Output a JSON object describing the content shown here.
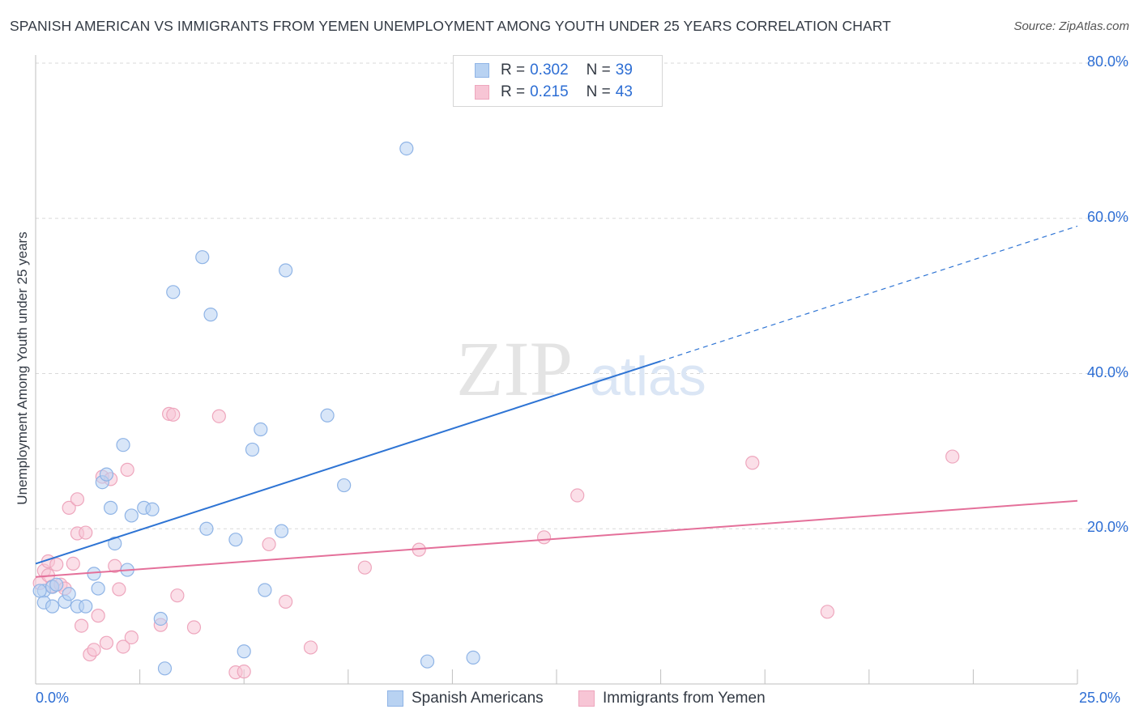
{
  "header": {
    "title": "SPANISH AMERICAN VS IMMIGRANTS FROM YEMEN UNEMPLOYMENT AMONG YOUTH UNDER 25 YEARS CORRELATION CHART",
    "source": "Source: ZipAtlas.com"
  },
  "watermark": {
    "zip": "ZIP",
    "atlas": "atlas"
  },
  "legend": {
    "rows": [
      {
        "r_label": "R =",
        "r_value": "0.302",
        "n_label": "N =",
        "n_value": "39"
      },
      {
        "r_label": "R =",
        "r_value": "0.215",
        "n_label": "N =",
        "n_value": "43"
      }
    ]
  },
  "colors": {
    "blue_fill": "#b8d2f2",
    "blue_stroke": "#8fb4e6",
    "blue_line": "#2e74d4",
    "pink_fill": "#f7c5d5",
    "pink_stroke": "#eea6bd",
    "pink_line": "#e4709a",
    "tick_text": "#2d6ed4",
    "grid": "#d9d9d9"
  },
  "chart_data": {
    "type": "scatter",
    "title": "SPANISH AMERICAN VS IMMIGRANTS FROM YEMEN UNEMPLOYMENT AMONG YOUTH UNDER 25 YEARS CORRELATION CHART",
    "xlabel": "",
    "ylabel": "Unemployment Among Youth under 25 years",
    "xlim": [
      0,
      25
    ],
    "ylim": [
      0,
      80
    ],
    "x_tick_labels": [
      "0.0%",
      "25.0%"
    ],
    "y_ticks": [
      20,
      40,
      60,
      80
    ],
    "y_tick_labels": [
      "20.0%",
      "40.0%",
      "60.0%",
      "80.0%"
    ],
    "grid": true,
    "legend_position": "top-center",
    "series": [
      {
        "name": "Spanish Americans",
        "r": 0.302,
        "n": 39,
        "points": [
          [
            0.2,
            12.0
          ],
          [
            0.2,
            10.5
          ],
          [
            0.4,
            12.5
          ],
          [
            0.4,
            10.0
          ],
          [
            0.5,
            12.8
          ],
          [
            0.7,
            10.6
          ],
          [
            0.8,
            11.6
          ],
          [
            1.0,
            10.0
          ],
          [
            1.2,
            10.0
          ],
          [
            1.4,
            14.2
          ],
          [
            1.5,
            12.3
          ],
          [
            1.6,
            26.0
          ],
          [
            1.7,
            27.0
          ],
          [
            1.8,
            22.7
          ],
          [
            1.9,
            18.1
          ],
          [
            2.1,
            30.8
          ],
          [
            2.2,
            14.7
          ],
          [
            2.3,
            21.7
          ],
          [
            2.6,
            22.7
          ],
          [
            2.8,
            22.5
          ],
          [
            3.0,
            8.4
          ],
          [
            3.1,
            2.0
          ],
          [
            3.3,
            50.5
          ],
          [
            4.0,
            55.0
          ],
          [
            4.1,
            20.0
          ],
          [
            4.2,
            47.6
          ],
          [
            4.8,
            18.6
          ],
          [
            5.0,
            4.2
          ],
          [
            5.2,
            30.2
          ],
          [
            5.4,
            32.8
          ],
          [
            5.5,
            12.1
          ],
          [
            5.9,
            19.7
          ],
          [
            6.0,
            53.3
          ],
          [
            7.0,
            34.6
          ],
          [
            7.4,
            25.6
          ],
          [
            8.9,
            69.0
          ],
          [
            9.4,
            2.9
          ],
          [
            10.5,
            3.4
          ],
          [
            0.1,
            12.0
          ]
        ],
        "trend": {
          "x0": 0,
          "y0": 15.5,
          "x1": 25,
          "y1": 59.0,
          "solid_until_x": 15.0
        }
      },
      {
        "name": "Immigrants from Yemen",
        "r": 0.215,
        "n": 43,
        "points": [
          [
            0.1,
            13.0
          ],
          [
            0.2,
            14.6
          ],
          [
            0.3,
            15.8
          ],
          [
            0.4,
            12.6
          ],
          [
            0.5,
            15.4
          ],
          [
            0.6,
            12.8
          ],
          [
            0.7,
            12.3
          ],
          [
            0.8,
            22.7
          ],
          [
            0.9,
            15.5
          ],
          [
            1.0,
            19.4
          ],
          [
            1.0,
            23.8
          ],
          [
            1.1,
            7.5
          ],
          [
            1.2,
            19.5
          ],
          [
            1.3,
            3.8
          ],
          [
            1.4,
            4.4
          ],
          [
            1.5,
            8.8
          ],
          [
            1.6,
            26.7
          ],
          [
            1.7,
            5.3
          ],
          [
            1.8,
            26.4
          ],
          [
            1.9,
            15.2
          ],
          [
            2.0,
            12.2
          ],
          [
            2.1,
            4.8
          ],
          [
            2.2,
            27.6
          ],
          [
            2.3,
            6.0
          ],
          [
            3.0,
            7.6
          ],
          [
            3.2,
            34.8
          ],
          [
            3.3,
            34.7
          ],
          [
            3.4,
            11.4
          ],
          [
            3.8,
            7.3
          ],
          [
            4.4,
            34.5
          ],
          [
            4.8,
            1.5
          ],
          [
            5.0,
            1.6
          ],
          [
            5.6,
            18.0
          ],
          [
            6.0,
            10.6
          ],
          [
            6.6,
            4.7
          ],
          [
            7.9,
            15.0
          ],
          [
            9.2,
            17.3
          ],
          [
            12.2,
            18.9
          ],
          [
            13.0,
            24.3
          ],
          [
            17.2,
            28.5
          ],
          [
            19.0,
            9.3
          ],
          [
            22.0,
            29.3
          ],
          [
            0.3,
            14.0
          ]
        ],
        "trend": {
          "x0": 0,
          "y0": 13.8,
          "x1": 25,
          "y1": 23.6
        }
      }
    ]
  }
}
